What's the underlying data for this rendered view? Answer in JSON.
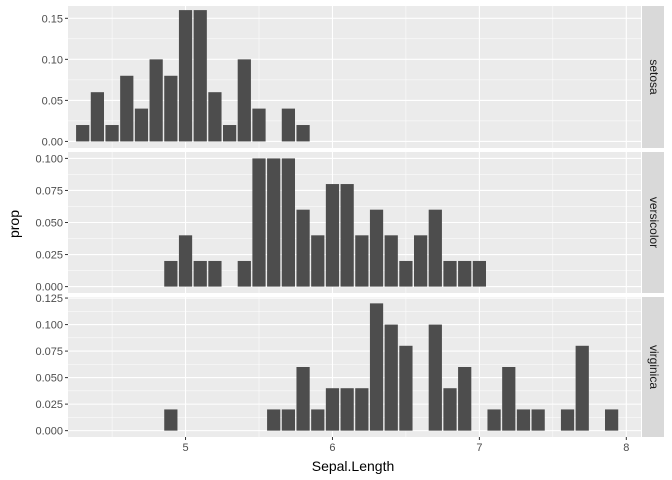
{
  "chart_data": {
    "type": "bar",
    "xlabel": "Sepal.Length",
    "ylabel": "prop",
    "x_ticks": [
      5,
      6,
      7,
      8
    ],
    "xlim": [
      4.2,
      8.1
    ],
    "colors": {
      "panel_bg": "#ebebeb",
      "grid_major": "#ffffff",
      "bar": "#4d4d4d",
      "strip_bg": "#d9d9d9"
    },
    "panels": [
      {
        "strip": "setosa",
        "ylim": [
          -0.008,
          0.165
        ],
        "y_ticks": [
          0,
          0.05,
          0.1,
          0.15
        ],
        "y_tick_labels": [
          "0.00",
          "0.05",
          "0.10",
          "0.15"
        ],
        "x": [
          4.3,
          4.4,
          4.5,
          4.6,
          4.7,
          4.8,
          4.9,
          5.0,
          5.1,
          5.2,
          5.3,
          5.4,
          5.5,
          5.7,
          5.8
        ],
        "values": [
          0.02,
          0.06,
          0.02,
          0.08,
          0.04,
          0.1,
          0.08,
          0.16,
          0.16,
          0.06,
          0.02,
          0.1,
          0.04,
          0.04,
          0.02
        ]
      },
      {
        "strip": "versicolor",
        "ylim": [
          -0.005,
          0.105
        ],
        "y_ticks": [
          0,
          0.025,
          0.05,
          0.075,
          0.1
        ],
        "y_tick_labels": [
          "0.000",
          "0.025",
          "0.050",
          "0.075",
          "0.100"
        ],
        "x": [
          4.9,
          5.0,
          5.1,
          5.2,
          5.4,
          5.5,
          5.6,
          5.7,
          5.8,
          5.9,
          6.0,
          6.1,
          6.2,
          6.3,
          6.4,
          6.5,
          6.6,
          6.7,
          6.8,
          6.9,
          7.0
        ],
        "values": [
          0.02,
          0.04,
          0.02,
          0.02,
          0.02,
          0.1,
          0.1,
          0.1,
          0.06,
          0.04,
          0.08,
          0.08,
          0.04,
          0.06,
          0.04,
          0.02,
          0.04,
          0.06,
          0.02,
          0.02,
          0.02
        ]
      },
      {
        "strip": "virginica",
        "ylim": [
          -0.006,
          0.126
        ],
        "y_ticks": [
          0,
          0.025,
          0.05,
          0.075,
          0.1,
          0.125
        ],
        "y_tick_labels": [
          "0.000",
          "0.025",
          "0.050",
          "0.075",
          "0.100",
          "0.125"
        ],
        "x": [
          4.9,
          5.6,
          5.7,
          5.8,
          5.9,
          6.0,
          6.1,
          6.2,
          6.3,
          6.4,
          6.5,
          6.7,
          6.8,
          6.9,
          7.1,
          7.2,
          7.3,
          7.4,
          7.6,
          7.7,
          7.9
        ],
        "values": [
          0.02,
          0.02,
          0.02,
          0.06,
          0.02,
          0.04,
          0.04,
          0.04,
          0.12,
          0.1,
          0.08,
          0.1,
          0.04,
          0.06,
          0.02,
          0.06,
          0.02,
          0.02,
          0.02,
          0.08,
          0.02
        ]
      }
    ]
  }
}
